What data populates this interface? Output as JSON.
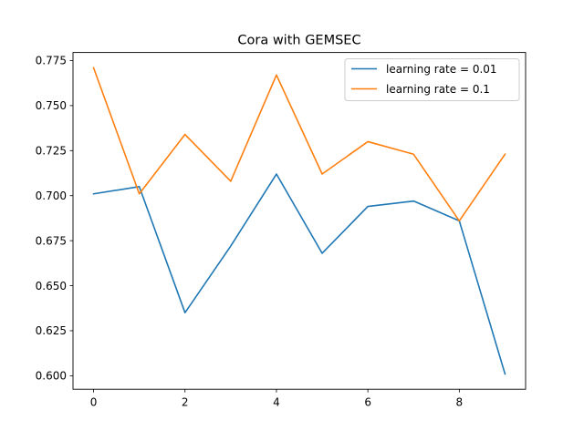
{
  "chart_data": {
    "type": "line",
    "title": "Cora with GEMSEC",
    "xlabel": "",
    "ylabel": "",
    "x": [
      0,
      1,
      2,
      3,
      4,
      5,
      6,
      7,
      8,
      9
    ],
    "series": [
      {
        "name": "learning rate = 0.01",
        "color": "#1f77b4",
        "values": [
          0.701,
          0.705,
          0.635,
          0.672,
          0.712,
          0.668,
          0.694,
          0.697,
          0.686,
          0.601
        ]
      },
      {
        "name": "learning rate = 0.1",
        "color": "#ff7f0e",
        "values": [
          0.771,
          0.701,
          0.734,
          0.708,
          0.767,
          0.712,
          0.73,
          0.723,
          0.686,
          0.723
        ]
      }
    ],
    "xlim": [
      -0.45,
      9.45
    ],
    "ylim": [
      0.5925,
      0.7795
    ],
    "xticks": [
      0,
      2,
      4,
      6,
      8
    ],
    "xtick_labels": [
      "0",
      "2",
      "4",
      "6",
      "8"
    ],
    "yticks": [
      0.6,
      0.625,
      0.65,
      0.675,
      0.7,
      0.725,
      0.75,
      0.775
    ],
    "ytick_labels": [
      "0.600",
      "0.625",
      "0.650",
      "0.675",
      "0.700",
      "0.725",
      "0.750",
      "0.775"
    ],
    "grid": false,
    "legend_position": "top-right"
  }
}
